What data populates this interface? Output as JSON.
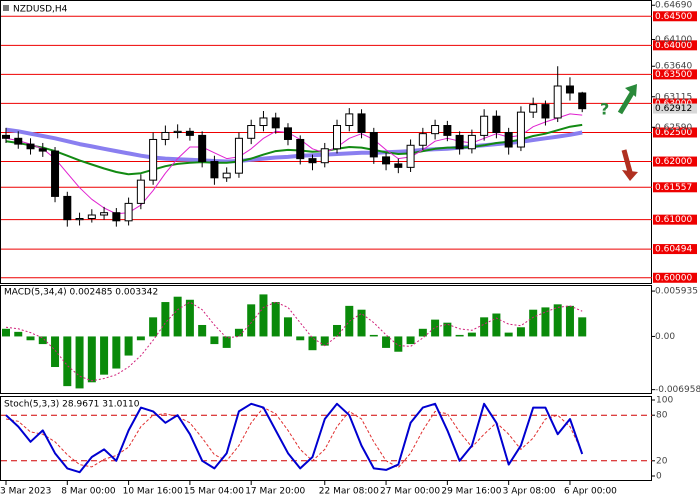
{
  "chart_data": [
    {
      "type": "candlestick",
      "title": "NZDUSD,H4",
      "categories": [
        "3 Mar 2023",
        null,
        null,
        null,
        null,
        "8 Mar 00:00",
        null,
        null,
        null,
        null,
        "10 Mar 16:00",
        null,
        null,
        null,
        null,
        "15 Mar 04:00",
        null,
        null,
        null,
        null,
        "17 Mar 20:00",
        null,
        null,
        null,
        null,
        null,
        "22 Mar 08:00",
        null,
        null,
        null,
        null,
        "27 Mar 00:00",
        null,
        null,
        null,
        null,
        "29 Mar 16:00",
        null,
        null,
        null,
        null,
        "3 Apr 08:00",
        null,
        null,
        null,
        null,
        "6 Apr 00:00",
        null
      ],
      "open": [
        0.6245,
        0.624,
        0.623,
        0.6222,
        0.6218,
        0.614,
        0.61,
        0.6102,
        0.6108,
        0.6112,
        0.6098,
        0.6128,
        0.6168,
        0.6238,
        0.625,
        0.6252,
        0.6245,
        0.62,
        0.6172,
        0.618,
        0.624,
        0.6262,
        0.6275,
        0.6258,
        0.6238,
        0.6205,
        0.6198,
        0.6222,
        0.6262,
        0.6282,
        0.625,
        0.6208,
        0.6196,
        0.619,
        0.6228,
        0.6248,
        0.6262,
        0.6245,
        0.6222,
        0.6245,
        0.6278,
        0.625,
        0.6225,
        0.6285,
        0.6298,
        0.6275,
        0.633,
        0.6318
      ],
      "high": [
        0.6258,
        0.6252,
        0.624,
        0.6232,
        0.6225,
        0.6148,
        0.6112,
        0.6118,
        0.6122,
        0.612,
        0.6138,
        0.6178,
        0.625,
        0.6262,
        0.6264,
        0.6258,
        0.6252,
        0.621,
        0.619,
        0.625,
        0.6272,
        0.6287,
        0.6284,
        0.6266,
        0.6245,
        0.6212,
        0.6232,
        0.6272,
        0.6292,
        0.629,
        0.6258,
        0.6215,
        0.6205,
        0.6238,
        0.6258,
        0.6272,
        0.627,
        0.6252,
        0.6255,
        0.629,
        0.6288,
        0.6258,
        0.6295,
        0.631,
        0.6305,
        0.6364,
        0.6345,
        0.632
      ],
      "low": [
        0.6232,
        0.6222,
        0.6212,
        0.6208,
        0.613,
        0.6088,
        0.609,
        0.6095,
        0.61,
        0.6088,
        0.609,
        0.6118,
        0.616,
        0.6228,
        0.624,
        0.6236,
        0.619,
        0.616,
        0.6165,
        0.6172,
        0.623,
        0.6252,
        0.6248,
        0.6228,
        0.6195,
        0.6185,
        0.619,
        0.6214,
        0.6252,
        0.624,
        0.6196,
        0.6185,
        0.618,
        0.6182,
        0.622,
        0.6238,
        0.6235,
        0.6212,
        0.6214,
        0.6236,
        0.624,
        0.6212,
        0.6218,
        0.6275,
        0.6262,
        0.6268,
        0.6305,
        0.6285
      ],
      "close": [
        0.624,
        0.623,
        0.6222,
        0.6218,
        0.614,
        0.61,
        0.6102,
        0.6108,
        0.6112,
        0.6098,
        0.6128,
        0.6168,
        0.6238,
        0.625,
        0.6252,
        0.6245,
        0.62,
        0.6172,
        0.618,
        0.624,
        0.6262,
        0.6275,
        0.6258,
        0.6238,
        0.6205,
        0.6198,
        0.6222,
        0.6262,
        0.6282,
        0.625,
        0.6208,
        0.6196,
        0.619,
        0.6228,
        0.6248,
        0.6262,
        0.6245,
        0.6222,
        0.6245,
        0.6278,
        0.625,
        0.6225,
        0.6285,
        0.6298,
        0.6275,
        0.633,
        0.6318,
        0.6291
      ],
      "overlays": [
        {
          "color": "#8a7ff0",
          "width": 4,
          "values": [
            0.6255,
            0.6252,
            0.6248,
            0.6244,
            0.624,
            0.6235,
            0.623,
            0.6226,
            0.6222,
            0.6218,
            0.6214,
            0.621,
            0.6207,
            0.6205,
            0.6204,
            0.6203,
            0.6202,
            0.6201,
            0.62,
            0.6201,
            0.6203,
            0.6205,
            0.6207,
            0.6208,
            0.621,
            0.6211,
            0.6212,
            0.6213,
            0.6214,
            0.6215,
            0.6215,
            0.6216,
            0.6217,
            0.6218,
            0.622,
            0.6221,
            0.6222,
            0.6224,
            0.6226,
            0.6228,
            0.623,
            0.6232,
            0.6234,
            0.6237,
            0.624,
            0.6243,
            0.6246,
            0.625
          ]
        },
        {
          "color": "#128a12",
          "width": 2,
          "values": [
            0.6235,
            0.6232,
            0.6228,
            0.6224,
            0.6218,
            0.621,
            0.6202,
            0.6195,
            0.6188,
            0.6182,
            0.6178,
            0.618,
            0.6186,
            0.6192,
            0.6196,
            0.6198,
            0.6199,
            0.6198,
            0.6198,
            0.62,
            0.6205,
            0.6212,
            0.6218,
            0.622,
            0.6219,
            0.6217,
            0.6218,
            0.6222,
            0.6225,
            0.6224,
            0.622,
            0.6216,
            0.6213,
            0.6214,
            0.6218,
            0.6222,
            0.6224,
            0.6224,
            0.6225,
            0.6228,
            0.6232,
            0.6234,
            0.6238,
            0.6244,
            0.6248,
            0.6254,
            0.626,
            0.6263
          ]
        },
        {
          "color": "#e020d0",
          "width": 1,
          "values": [
            0.624,
            0.6236,
            0.623,
            0.6222,
            0.6205,
            0.618,
            0.6155,
            0.6135,
            0.612,
            0.611,
            0.6112,
            0.6125,
            0.615,
            0.618,
            0.6205,
            0.6225,
            0.6225,
            0.6215,
            0.6205,
            0.6208,
            0.6222,
            0.624,
            0.6252,
            0.625,
            0.6238,
            0.6222,
            0.6215,
            0.6225,
            0.624,
            0.6248,
            0.6238,
            0.622,
            0.6205,
            0.6208,
            0.622,
            0.6235,
            0.624,
            0.6235,
            0.6232,
            0.624,
            0.6248,
            0.6242,
            0.6245,
            0.626,
            0.6268,
            0.6275,
            0.6282,
            0.628
          ]
        }
      ],
      "ylim": [
        0.5991,
        0.6478
      ],
      "yticks": [
        {
          "value": 0.6469,
          "label": "0.64690"
        },
        {
          "value": 0.641,
          "label": "0.64100"
        },
        {
          "value": 0.6364,
          "label": "0.63640"
        },
        {
          "value": 0.63115,
          "label": "0.63115"
        },
        {
          "value": 0.6259,
          "label": "0.62590"
        }
      ],
      "levels": [
        {
          "value": 0.645,
          "label": "0.64500"
        },
        {
          "value": 0.64,
          "label": "0.64000"
        },
        {
          "value": 0.635,
          "label": "0.63500"
        },
        {
          "value": 0.63,
          "label": "0.63000"
        },
        {
          "value": 0.625,
          "label": "0.62500"
        },
        {
          "value": 0.62,
          "label": "0.62000"
        },
        {
          "value": 0.61557,
          "label": "0.61557"
        },
        {
          "value": 0.61,
          "label": "0.61000"
        },
        {
          "value": 0.60494,
          "label": "0.60494"
        },
        {
          "value": 0.6,
          "label": "0.60000"
        }
      ],
      "level_color": "#ee0000",
      "last_price": {
        "value": 0.62912,
        "label": "0.62912"
      },
      "annotation": "?"
    },
    {
      "type": "macd",
      "title": "MACD(5,34,4) 0.002485 0.003342",
      "color": "#0a8a0a",
      "signal_color": "#d0207a",
      "values": [
        0.001,
        0.0006,
        -0.0005,
        -0.001,
        -0.004,
        -0.0065,
        -0.0068,
        -0.006,
        -0.005,
        -0.0042,
        -0.0025,
        -0.0005,
        0.0025,
        0.0045,
        0.0052,
        0.0048,
        0.0015,
        -0.001,
        -0.0015,
        0.001,
        0.0042,
        0.0055,
        0.0045,
        0.0025,
        -0.0005,
        -0.0018,
        -0.0012,
        0.0015,
        0.004,
        0.0035,
        0.0002,
        -0.0015,
        -0.002,
        -0.001,
        0.001,
        0.0022,
        0.0018,
        0.0002,
        0.0005,
        0.0025,
        0.003,
        0.0005,
        0.0012,
        0.0035,
        0.0038,
        0.0042,
        0.004,
        0.0025
      ],
      "signal": [
        0.0012,
        0.001,
        0.0005,
        -0.0002,
        -0.0018,
        -0.0038,
        -0.0052,
        -0.0058,
        -0.0055,
        -0.005,
        -0.004,
        -0.0025,
        -0.0005,
        0.0018,
        0.0035,
        0.0045,
        0.0035,
        0.0015,
        -0.0002,
        0.0,
        0.0018,
        0.0038,
        0.0045,
        0.0038,
        0.0018,
        -0.0002,
        -0.0012,
        0.0,
        0.002,
        0.003,
        0.0018,
        0.0002,
        -0.0012,
        -0.0013,
        -0.0002,
        0.0012,
        0.0016,
        0.001,
        0.0008,
        0.0016,
        0.0024,
        0.0016,
        0.0014,
        0.0025,
        0.0032,
        0.0038,
        0.004,
        0.0033
      ],
      "ylim": [
        -0.0074,
        0.0066
      ],
      "yticks": [
        0.005935,
        {
          "value": 0,
          "label": "0.00"
        },
        -0.006958
      ]
    },
    {
      "type": "stochastic",
      "title": "Stoch(5,3,3) 28.9671 31.0110",
      "k_color": "#0000d0",
      "d_color": "#e03030",
      "k": [
        80,
        65,
        45,
        60,
        30,
        10,
        5,
        25,
        35,
        20,
        60,
        90,
        85,
        70,
        80,
        55,
        20,
        10,
        30,
        85,
        95,
        90,
        60,
        30,
        10,
        25,
        75,
        95,
        80,
        40,
        10,
        8,
        15,
        70,
        90,
        95,
        60,
        20,
        40,
        95,
        70,
        15,
        40,
        90,
        90,
        55,
        75,
        29
      ],
      "d": [
        75,
        72,
        58,
        55,
        45,
        28,
        15,
        12,
        22,
        27,
        38,
        65,
        80,
        82,
        78,
        70,
        50,
        28,
        20,
        40,
        70,
        90,
        82,
        60,
        35,
        20,
        35,
        65,
        85,
        75,
        45,
        20,
        11,
        30,
        60,
        85,
        82,
        58,
        38,
        55,
        70,
        55,
        35,
        50,
        75,
        80,
        65,
        31
      ],
      "ylim": [
        0,
        100
      ],
      "yticks": [
        100,
        80,
        20,
        0
      ]
    }
  ]
}
